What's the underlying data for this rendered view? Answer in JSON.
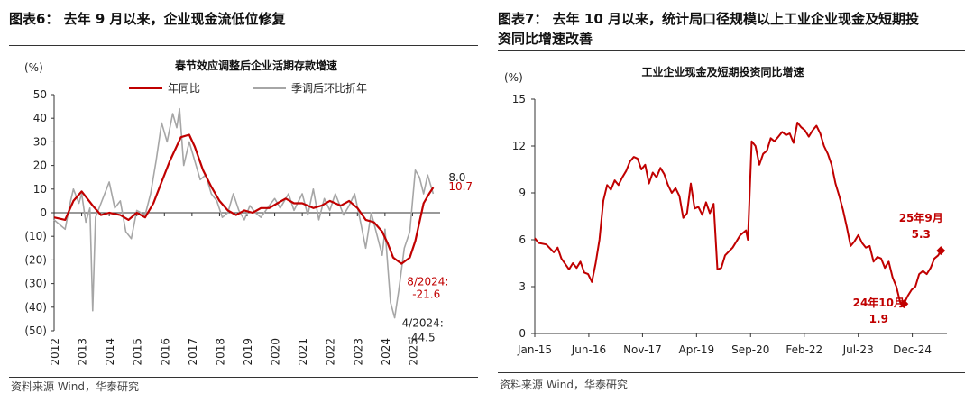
{
  "left": {
    "figure_title": "图表6：  去年 9 月以来，企业现金流低位修复",
    "source": "资料来源 Wind，华泰研究",
    "chart_data": {
      "type": "line",
      "title": "春节效应调整后企业活期存款增速",
      "ylabel": "(%)",
      "ylim": [
        -50,
        50
      ],
      "yticks": [
        "50",
        "40",
        "30",
        "20",
        "10",
        "0",
        "(10)",
        "(20)",
        "(30)",
        "(40)",
        "(50)"
      ],
      "xlim": [
        2012,
        2026
      ],
      "xticks": [
        "2012",
        "2013",
        "2014",
        "2015",
        "2016",
        "2017",
        "2018",
        "2019",
        "2020",
        "2021",
        "2022",
        "2023",
        "2024",
        "2025"
      ],
      "series": [
        {
          "name": "年同比",
          "color": "#c00000",
          "points": [
            [
              2012.0,
              -2
            ],
            [
              2012.4,
              -3
            ],
            [
              2012.7,
              5
            ],
            [
              2013.0,
              9
            ],
            [
              2013.4,
              3
            ],
            [
              2013.7,
              -1
            ],
            [
              2014.0,
              0
            ],
            [
              2014.4,
              -1
            ],
            [
              2014.7,
              -3
            ],
            [
              2015.0,
              0
            ],
            [
              2015.3,
              -2
            ],
            [
              2015.6,
              4
            ],
            [
              2015.9,
              13
            ],
            [
              2016.2,
              22
            ],
            [
              2016.6,
              32
            ],
            [
              2016.9,
              33
            ],
            [
              2017.1,
              28
            ],
            [
              2017.4,
              18
            ],
            [
              2017.7,
              11
            ],
            [
              2018.0,
              5
            ],
            [
              2018.3,
              1
            ],
            [
              2018.6,
              -1
            ],
            [
              2018.9,
              1
            ],
            [
              2019.2,
              0
            ],
            [
              2019.5,
              2
            ],
            [
              2019.8,
              2
            ],
            [
              2020.1,
              4
            ],
            [
              2020.4,
              6
            ],
            [
              2020.7,
              4
            ],
            [
              2021.0,
              4
            ],
            [
              2021.4,
              2
            ],
            [
              2021.7,
              3
            ],
            [
              2022.0,
              5
            ],
            [
              2022.4,
              3
            ],
            [
              2022.7,
              5
            ],
            [
              2023.0,
              2
            ],
            [
              2023.3,
              -3
            ],
            [
              2023.6,
              -4
            ],
            [
              2023.9,
              -8
            ],
            [
              2024.1,
              -13
            ],
            [
              2024.3,
              -19
            ],
            [
              2024.6,
              -21.6
            ],
            [
              2024.9,
              -19
            ],
            [
              2025.1,
              -12
            ],
            [
              2025.4,
              4
            ],
            [
              2025.6,
              8
            ],
            [
              2025.75,
              10.7
            ]
          ]
        },
        {
          "name": "季调后环比折年",
          "color": "#a6a6a6",
          "points": [
            [
              2012.0,
              -3
            ],
            [
              2012.2,
              -5
            ],
            [
              2012.4,
              -7
            ],
            [
              2012.6,
              5
            ],
            [
              2012.7,
              10
            ],
            [
              2012.9,
              4
            ],
            [
              2013.0,
              8
            ],
            [
              2013.15,
              -4
            ],
            [
              2013.3,
              2
            ],
            [
              2013.4,
              -41.5
            ],
            [
              2013.5,
              -2
            ],
            [
              2013.7,
              4
            ],
            [
              2013.9,
              10
            ],
            [
              2014.0,
              13
            ],
            [
              2014.2,
              2
            ],
            [
              2014.4,
              5
            ],
            [
              2014.6,
              -8
            ],
            [
              2014.8,
              -11
            ],
            [
              2015.0,
              1
            ],
            [
              2015.3,
              -1
            ],
            [
              2015.5,
              8
            ],
            [
              2015.7,
              22
            ],
            [
              2015.9,
              38
            ],
            [
              2016.1,
              30
            ],
            [
              2016.3,
              42
            ],
            [
              2016.45,
              36
            ],
            [
              2016.55,
              44
            ],
            [
              2016.7,
              20
            ],
            [
              2016.9,
              30
            ],
            [
              2017.1,
              22
            ],
            [
              2017.3,
              14
            ],
            [
              2017.5,
              16
            ],
            [
              2017.7,
              8
            ],
            [
              2017.9,
              5
            ],
            [
              2018.1,
              -2
            ],
            [
              2018.3,
              0
            ],
            [
              2018.5,
              8
            ],
            [
              2018.7,
              1
            ],
            [
              2018.9,
              -3
            ],
            [
              2019.1,
              3
            ],
            [
              2019.3,
              0
            ],
            [
              2019.5,
              -2
            ],
            [
              2019.8,
              3
            ],
            [
              2020.0,
              6
            ],
            [
              2020.2,
              2
            ],
            [
              2020.5,
              8
            ],
            [
              2020.7,
              1
            ],
            [
              2021.0,
              8
            ],
            [
              2021.2,
              -1
            ],
            [
              2021.4,
              10
            ],
            [
              2021.6,
              -3
            ],
            [
              2021.8,
              6
            ],
            [
              2022.0,
              1
            ],
            [
              2022.2,
              8
            ],
            [
              2022.5,
              -1
            ],
            [
              2022.7,
              3
            ],
            [
              2022.9,
              8
            ],
            [
              2023.1,
              -3
            ],
            [
              2023.3,
              -15
            ],
            [
              2023.5,
              0
            ],
            [
              2023.7,
              -9
            ],
            [
              2023.9,
              -18
            ],
            [
              2024.0,
              -7
            ],
            [
              2024.2,
              -38
            ],
            [
              2024.35,
              -44.5
            ],
            [
              2024.5,
              -33
            ],
            [
              2024.7,
              -15
            ],
            [
              2024.9,
              -8
            ],
            [
              2025.1,
              18
            ],
            [
              2025.25,
              15
            ],
            [
              2025.4,
              8
            ],
            [
              2025.55,
              16
            ],
            [
              2025.75,
              8
            ]
          ]
        }
      ],
      "annotations": [
        {
          "text": "8.0",
          "x": 2025.75,
          "y": 8.0,
          "color": "#222222"
        },
        {
          "text": "10.7",
          "x": 2025.75,
          "y": 10.7,
          "color": "#c00000"
        },
        {
          "text": "8/2024:",
          "x": 2024.6,
          "y": -21.6,
          "color": "#c00000"
        },
        {
          "text": "-21.6",
          "x": 2024.6,
          "y": -21.6,
          "color": "#c00000"
        },
        {
          "text": "4/2024:",
          "x": 2024.35,
          "y": -44.5,
          "color": "#222222"
        },
        {
          "text": "-44.5",
          "x": 2024.35,
          "y": -44.5,
          "color": "#222222"
        }
      ]
    }
  },
  "right": {
    "figure_title_line1": "图表7：  去年 10 月以来，统计局口径规模以上工业企业现金及短期投",
    "figure_title_line2": "资同比增速改善",
    "source": "资料来源 Wind，华泰研究",
    "chart_data": {
      "type": "line",
      "title": "工业企业现金及短期投资同比增速",
      "ylabel": "(%)",
      "ylim": [
        0,
        15
      ],
      "yticks": [
        "15",
        "12",
        "9",
        "6",
        "3",
        "0"
      ],
      "xlim": [
        2015.0,
        2025.83
      ],
      "xticks": [
        {
          "label": "Jan-15",
          "x": 2015.0
        },
        {
          "label": "Jun-16",
          "x": 2016.42
        },
        {
          "label": "Nov-17",
          "x": 2017.83
        },
        {
          "label": "Apr-19",
          "x": 2019.25
        },
        {
          "label": "Sep-20",
          "x": 2020.67
        },
        {
          "label": "Feb-22",
          "x": 2022.08
        },
        {
          "label": "Jul-23",
          "x": 2023.5
        },
        {
          "label": "Dec-24",
          "x": 2024.92
        }
      ],
      "series": [
        {
          "name": "工业企业现金及短期投资同比增速",
          "color": "#c00000",
          "points": [
            [
              2015.0,
              6.1
            ],
            [
              2015.1,
              5.8
            ],
            [
              2015.3,
              5.7
            ],
            [
              2015.5,
              5.2
            ],
            [
              2015.6,
              5.5
            ],
            [
              2015.7,
              4.8
            ],
            [
              2015.9,
              4.1
            ],
            [
              2016.0,
              4.5
            ],
            [
              2016.1,
              4.2
            ],
            [
              2016.2,
              4.6
            ],
            [
              2016.3,
              3.9
            ],
            [
              2016.4,
              3.8
            ],
            [
              2016.5,
              3.3
            ],
            [
              2016.6,
              4.5
            ],
            [
              2016.7,
              6.0
            ],
            [
              2016.8,
              8.5
            ],
            [
              2016.9,
              9.5
            ],
            [
              2017.0,
              9.2
            ],
            [
              2017.1,
              9.8
            ],
            [
              2017.2,
              9.5
            ],
            [
              2017.3,
              10.0
            ],
            [
              2017.4,
              10.4
            ],
            [
              2017.5,
              11.0
            ],
            [
              2017.6,
              11.3
            ],
            [
              2017.7,
              11.2
            ],
            [
              2017.8,
              10.5
            ],
            [
              2017.9,
              10.8
            ],
            [
              2018.0,
              9.6
            ],
            [
              2018.1,
              10.3
            ],
            [
              2018.2,
              10.0
            ],
            [
              2018.3,
              10.6
            ],
            [
              2018.4,
              10.2
            ],
            [
              2018.5,
              9.5
            ],
            [
              2018.6,
              9.0
            ],
            [
              2018.7,
              9.3
            ],
            [
              2018.8,
              8.8
            ],
            [
              2018.9,
              7.4
            ],
            [
              2019.0,
              7.7
            ],
            [
              2019.1,
              9.6
            ],
            [
              2019.2,
              8.0
            ],
            [
              2019.3,
              8.1
            ],
            [
              2019.4,
              7.6
            ],
            [
              2019.5,
              8.4
            ],
            [
              2019.6,
              7.7
            ],
            [
              2019.7,
              8.3
            ],
            [
              2019.8,
              4.1
            ],
            [
              2019.9,
              4.2
            ],
            [
              2020.0,
              5.0
            ],
            [
              2020.2,
              5.5
            ],
            [
              2020.4,
              6.3
            ],
            [
              2020.55,
              6.6
            ],
            [
              2020.6,
              6.0
            ],
            [
              2020.7,
              12.3
            ],
            [
              2020.8,
              12.0
            ],
            [
              2020.9,
              10.8
            ],
            [
              2021.0,
              11.5
            ],
            [
              2021.1,
              11.7
            ],
            [
              2021.2,
              12.5
            ],
            [
              2021.3,
              12.3
            ],
            [
              2021.4,
              12.6
            ],
            [
              2021.5,
              12.9
            ],
            [
              2021.6,
              12.7
            ],
            [
              2021.7,
              12.8
            ],
            [
              2021.8,
              12.2
            ],
            [
              2021.9,
              13.5
            ],
            [
              2022.0,
              13.2
            ],
            [
              2022.1,
              13.0
            ],
            [
              2022.2,
              12.6
            ],
            [
              2022.3,
              13.0
            ],
            [
              2022.4,
              13.3
            ],
            [
              2022.5,
              12.8
            ],
            [
              2022.6,
              12.0
            ],
            [
              2022.7,
              11.5
            ],
            [
              2022.8,
              10.8
            ],
            [
              2022.9,
              9.6
            ],
            [
              2023.0,
              8.8
            ],
            [
              2023.1,
              7.9
            ],
            [
              2023.2,
              6.8
            ],
            [
              2023.3,
              5.6
            ],
            [
              2023.4,
              5.9
            ],
            [
              2023.5,
              6.3
            ],
            [
              2023.6,
              5.8
            ],
            [
              2023.7,
              5.5
            ],
            [
              2023.8,
              5.6
            ],
            [
              2023.9,
              4.6
            ],
            [
              2024.0,
              4.9
            ],
            [
              2024.1,
              4.8
            ],
            [
              2024.2,
              4.2
            ],
            [
              2024.3,
              4.6
            ],
            [
              2024.4,
              3.6
            ],
            [
              2024.5,
              3.0
            ],
            [
              2024.6,
              2.0
            ],
            [
              2024.7,
              1.9
            ],
            [
              2024.8,
              2.4
            ],
            [
              2024.9,
              2.8
            ],
            [
              2025.0,
              3.0
            ],
            [
              2025.1,
              3.8
            ],
            [
              2025.2,
              4.0
            ],
            [
              2025.3,
              3.8
            ],
            [
              2025.4,
              4.2
            ],
            [
              2025.5,
              4.8
            ],
            [
              2025.6,
              5.0
            ],
            [
              2025.67,
              5.3
            ]
          ]
        }
      ],
      "highlights": [
        {
          "label": "24年10月",
          "value": "1.9",
          "x": 2024.7,
          "y": 1.9
        },
        {
          "label": "25年9月",
          "value": "5.3",
          "x": 2025.67,
          "y": 5.3
        }
      ]
    }
  }
}
